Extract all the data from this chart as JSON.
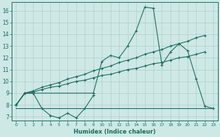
{
  "xlabel": "Humidex (Indice chaleur)",
  "background_color": "#cde8e5",
  "grid_color": "#aecfcc",
  "line_color": "#1a6b5e",
  "xlim": [
    -0.5,
    23.5
  ],
  "ylim": [
    6.7,
    16.7
  ],
  "xticks": [
    0,
    1,
    2,
    3,
    4,
    5,
    6,
    7,
    8,
    9,
    10,
    11,
    12,
    13,
    14,
    15,
    16,
    17,
    18,
    19,
    20,
    21,
    22,
    23
  ],
  "yticks": [
    7,
    8,
    9,
    10,
    11,
    12,
    13,
    14,
    15,
    16
  ],
  "series_flat_x": [
    0,
    1,
    2,
    3,
    4,
    5,
    6,
    7,
    8,
    9,
    10,
    11,
    12,
    13,
    14,
    15,
    16,
    17,
    18,
    19,
    20,
    21,
    22,
    23
  ],
  "series_flat_y": [
    7.7,
    7.7,
    7.7,
    7.7,
    7.7,
    7.7,
    7.7,
    7.7,
    7.7,
    7.7,
    7.7,
    7.7,
    7.7,
    7.7,
    7.7,
    7.7,
    7.7,
    7.7,
    7.7,
    7.7,
    7.7,
    7.7,
    7.7,
    7.7
  ],
  "series_wavy_x": [
    0,
    1,
    2,
    3,
    4,
    5,
    6,
    7,
    8,
    9
  ],
  "series_wavy_y": [
    8.0,
    9.0,
    9.0,
    7.7,
    7.1,
    6.9,
    7.3,
    6.9,
    7.7,
    8.8
  ],
  "series_diag1_x": [
    0,
    1,
    2,
    3,
    4,
    5,
    6,
    7,
    8,
    9,
    10,
    11,
    12,
    13,
    14,
    15,
    16,
    17,
    18,
    19,
    20,
    21,
    22
  ],
  "series_diag1_y": [
    8.0,
    9.0,
    9.1,
    9.3,
    9.5,
    9.6,
    9.8,
    10.0,
    10.1,
    10.3,
    10.5,
    10.6,
    10.8,
    11.0,
    11.1,
    11.3,
    11.5,
    11.6,
    11.8,
    12.0,
    12.1,
    12.3,
    12.5
  ],
  "series_diag2_x": [
    0,
    1,
    2,
    3,
    4,
    5,
    6,
    7,
    8,
    9,
    10,
    11,
    12,
    13,
    14,
    15,
    16,
    17,
    18,
    19,
    20,
    21,
    22
  ],
  "series_diag2_y": [
    8.0,
    9.0,
    9.2,
    9.5,
    9.7,
    9.9,
    10.2,
    10.4,
    10.6,
    10.9,
    11.1,
    11.3,
    11.6,
    11.8,
    12.0,
    12.3,
    12.5,
    12.7,
    13.0,
    13.2,
    13.4,
    13.7,
    13.9
  ],
  "series_spike_x": [
    0,
    1,
    2,
    9,
    10,
    11,
    12,
    13,
    14,
    15,
    16,
    17,
    18,
    19,
    20,
    21,
    22,
    23
  ],
  "series_spike_y": [
    8.0,
    9.0,
    9.0,
    9.0,
    11.7,
    12.2,
    12.0,
    13.0,
    14.3,
    16.3,
    16.2,
    11.4,
    12.5,
    13.2,
    12.6,
    10.2,
    7.9,
    7.7
  ]
}
